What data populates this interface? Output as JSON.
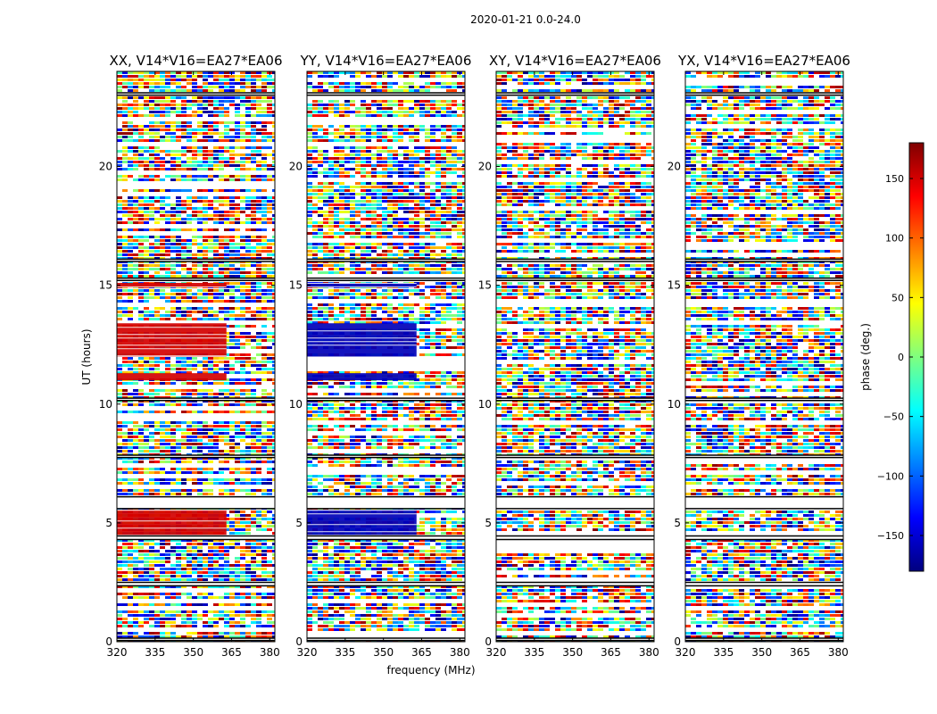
{
  "suptitle": "2020-01-21 0.0-24.0",
  "colors": {
    "jet": [
      "#00007f",
      "#0000ff",
      "#007fff",
      "#00ffff",
      "#7fff7f",
      "#ffff00",
      "#ff7f00",
      "#ff0000",
      "#7f0000"
    ]
  },
  "chart_data": {
    "type": "heatmap",
    "title": "2020-01-21 0.0-24.0",
    "xlabel": "frequency (MHz)",
    "ylabel": "UT (hours)",
    "xlim": [
      320,
      382
    ],
    "ylim": [
      0,
      24
    ],
    "xticks": [
      "320",
      "335",
      "350",
      "365",
      "380"
    ],
    "xtick_values": [
      320,
      335,
      350,
      365,
      380
    ],
    "yticks": [
      "0",
      "5",
      "10",
      "15",
      "20"
    ],
    "ytick_values": [
      0,
      5,
      10,
      15,
      20
    ],
    "colorbar": {
      "label": "phase (deg.)",
      "range": [
        -180,
        180
      ],
      "ticks": [
        "150",
        "100",
        "50",
        "0",
        "−50",
        "−100",
        "−150"
      ],
      "tick_values": [
        150,
        100,
        50,
        0,
        -50,
        -100,
        -150
      ],
      "colormap": "jet"
    },
    "panels": [
      {
        "title": "XX, V14*V16=EA27*EA06",
        "dominant_phase_deg": 150
      },
      {
        "title": "YY, V14*V16=EA27*EA06",
        "dominant_phase_deg": -160
      },
      {
        "title": "XY, V14*V16=EA27*EA06",
        "dominant_phase_deg": null
      },
      {
        "title": "YX, V14*V16=EA27*EA06",
        "dominant_phase_deg": null
      }
    ],
    "flagged_gaps_ut_hours": [
      [
        23.0,
        23.1
      ],
      [
        16.1,
        16.0
      ],
      [
        15.3,
        15.2
      ],
      [
        10.25,
        10.15
      ],
      [
        7.85,
        7.75
      ],
      [
        6.1,
        5.6
      ],
      [
        4.45,
        4.3
      ],
      [
        2.5,
        2.35
      ],
      [
        0.15,
        0.05
      ]
    ],
    "strong_phase_bands_ut_hours": [
      [
        15.1,
        14.9
      ],
      [
        13.4,
        12.0
      ],
      [
        11.3,
        11.0
      ],
      [
        5.55,
        4.5
      ]
    ],
    "strong_band_max_freq_mhz": 363
  }
}
